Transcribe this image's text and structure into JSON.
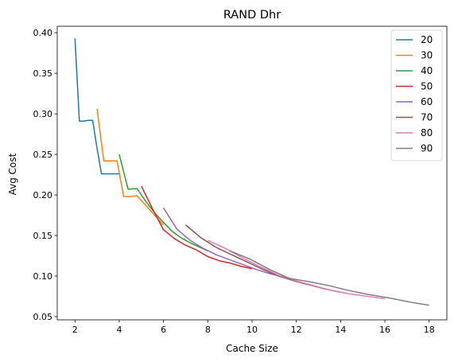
{
  "chart_data": {
    "type": "line",
    "title": "RAND Dhr",
    "xlabel": "Cache Size",
    "ylabel": "Avg Cost",
    "xlim": [
      1.2,
      18.8
    ],
    "ylim": [
      0.046,
      0.408
    ],
    "xticks": [
      2,
      4,
      6,
      8,
      10,
      12,
      14,
      16,
      18
    ],
    "yticks": [
      0.05,
      0.1,
      0.15,
      0.2,
      0.25,
      0.3,
      0.35,
      0.4
    ],
    "ytick_labels": [
      "0.05",
      "0.10",
      "0.15",
      "0.20",
      "0.25",
      "0.30",
      "0.35",
      "0.40"
    ],
    "grid": false,
    "legend_position": "top-right",
    "series": [
      {
        "name": "20",
        "color": "#1f77b4",
        "x": [
          2.0,
          2.2,
          2.4,
          2.6,
          2.8,
          3.0,
          3.2,
          3.4,
          3.6,
          3.8,
          4.0
        ],
        "y": [
          0.393,
          0.291,
          0.291,
          0.292,
          0.292,
          0.257,
          0.226,
          0.226,
          0.226,
          0.226,
          0.226
        ]
      },
      {
        "name": "30",
        "color": "#ff7f0e",
        "x": [
          3.0,
          3.3,
          3.6,
          3.9,
          4.2,
          4.5,
          4.8,
          5.1,
          5.4,
          5.7,
          6.0
        ],
        "y": [
          0.306,
          0.242,
          0.242,
          0.242,
          0.198,
          0.198,
          0.199,
          0.19,
          0.181,
          0.172,
          0.163
        ]
      },
      {
        "name": "40",
        "color": "#2ca02c",
        "x": [
          4.0,
          4.4,
          4.8,
          5.2,
          5.6,
          6.0,
          6.4,
          6.8,
          7.2,
          7.6,
          8.0
        ],
        "y": [
          0.25,
          0.207,
          0.208,
          0.192,
          0.178,
          0.166,
          0.155,
          0.147,
          0.141,
          0.136,
          0.131
        ]
      },
      {
        "name": "50",
        "color": "#d62728",
        "x": [
          5.0,
          5.5,
          6.0,
          6.5,
          7.0,
          7.5,
          8.0,
          8.5,
          9.0,
          9.5,
          10.0
        ],
        "y": [
          0.211,
          0.183,
          0.157,
          0.146,
          0.138,
          0.132,
          0.124,
          0.119,
          0.116,
          0.112,
          0.109
        ]
      },
      {
        "name": "60",
        "color": "#9467bd",
        "x": [
          6.0,
          6.6,
          7.2,
          7.8,
          8.4,
          9.0,
          9.6,
          10.2,
          10.8,
          11.4,
          12.0
        ],
        "y": [
          0.184,
          0.158,
          0.144,
          0.134,
          0.126,
          0.12,
          0.114,
          0.108,
          0.103,
          0.099,
          0.095
        ]
      },
      {
        "name": "70",
        "color": "#8c564b",
        "x": [
          7.0,
          7.7,
          8.4,
          9.1,
          9.8,
          10.5,
          11.2,
          11.9,
          12.6,
          13.3,
          14.0
        ],
        "y": [
          0.163,
          0.147,
          0.135,
          0.126,
          0.117,
          0.108,
          0.1,
          0.094,
          0.089,
          0.084,
          0.08
        ]
      },
      {
        "name": "80",
        "color": "#e377c2",
        "x": [
          8.0,
          8.8,
          9.6,
          10.4,
          11.2,
          12.0,
          12.8,
          13.6,
          14.4,
          15.2,
          16.0
        ],
        "y": [
          0.144,
          0.134,
          0.122,
          0.111,
          0.101,
          0.094,
          0.088,
          0.082,
          0.078,
          0.075,
          0.072
        ]
      },
      {
        "name": "90",
        "color": "#7f7f7f",
        "x": [
          9.0,
          9.9,
          10.8,
          11.7,
          12.6,
          13.5,
          14.4,
          15.3,
          16.2,
          17.1,
          18.0
        ],
        "y": [
          0.131,
          0.121,
          0.108,
          0.097,
          0.093,
          0.088,
          0.082,
          0.077,
          0.073,
          0.068,
          0.064
        ]
      }
    ]
  }
}
